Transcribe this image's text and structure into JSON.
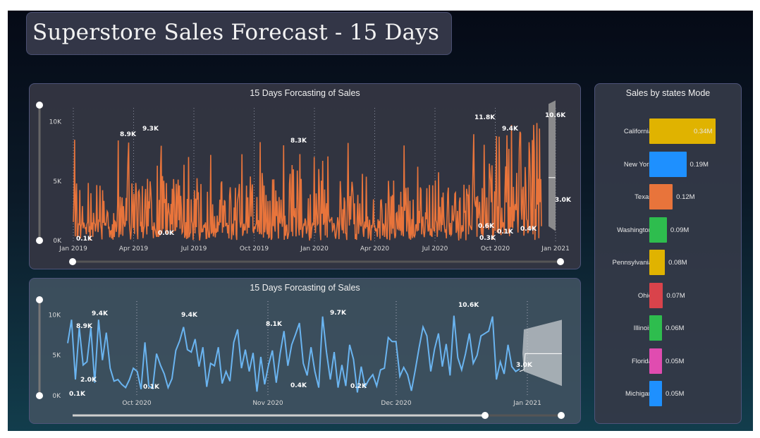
{
  "page": {
    "title": "Superstore Sales Forecast - 15 Days"
  },
  "chart_data": [
    {
      "type": "line",
      "title": "15 Days Forcasting of Sales",
      "color": "#e8743b",
      "yticks": [
        "0K",
        "5K",
        "10K"
      ],
      "ylim": [
        0,
        12000
      ],
      "xticks": [
        "Jan 2019",
        "Apr 2019",
        "Jul 2019",
        "Oct 2019",
        "Jan 2020",
        "Apr 2020",
        "Jul 2020",
        "Oct 2020",
        "Jan 2021"
      ],
      "annotations": [
        {
          "label": "0.1K",
          "value": 100
        },
        {
          "label": "8.9K",
          "value": 8900
        },
        {
          "label": "9.3K",
          "value": 9300
        },
        {
          "label": "0.0K",
          "value": 0
        },
        {
          "label": "8.3K",
          "value": 8300
        },
        {
          "label": "11.8K",
          "value": 11800
        },
        {
          "label": "0.6K",
          "value": 600
        },
        {
          "label": "0.3K",
          "value": 300
        },
        {
          "label": "9.4K",
          "value": 9400
        },
        {
          "label": "0.1K",
          "value": 100
        },
        {
          "label": "0.4K",
          "value": 400
        },
        {
          "label": "10.6K",
          "value": 10600
        },
        {
          "label": "3.0K",
          "value": 3000
        }
      ],
      "forecast_days": 15
    },
    {
      "type": "line",
      "title": "15 Days Forcasting of Sales",
      "color": "#6ab4f0",
      "yticks": [
        "0K",
        "5K",
        "10K"
      ],
      "ylim": [
        0,
        11000
      ],
      "xticks": [
        "Oct 2020",
        "Nov 2020",
        "Dec 2020",
        "Jan 2021"
      ],
      "values": [
        6500,
        9400,
        2000,
        8400,
        3800,
        4200,
        8400,
        1600,
        9400,
        4400,
        7800,
        3400,
        1800,
        2000,
        1400,
        1000,
        2000,
        3400,
        3000,
        800,
        6600,
        1200,
        900,
        5200,
        3800,
        2700,
        1000,
        2100,
        5600,
        6800,
        8500,
        5700,
        5400,
        7000,
        3600,
        6000,
        1100,
        4000,
        3700,
        6000,
        1500,
        3000,
        1800,
        6600,
        8200,
        3400,
        5700,
        3000,
        5300,
        500,
        4800,
        1400,
        3800,
        5600,
        1600,
        5200,
        8000,
        3700,
        6300,
        7600,
        9000,
        4000,
        2500,
        6000,
        3000,
        1000,
        9800,
        5400,
        2000,
        5400,
        1000,
        3800,
        1200,
        6300,
        4500,
        400,
        3600,
        1100,
        2000,
        2600,
        1200,
        3200,
        3400,
        7200,
        6700,
        6700,
        2400,
        3500,
        2600,
        600,
        3200,
        6000,
        8500,
        7400,
        3000,
        5800,
        7700,
        3600,
        6400,
        2500,
        9900,
        4700,
        3200,
        5200,
        7700,
        4000,
        5000,
        7400,
        7700,
        8000,
        9800,
        2000,
        4200,
        2700,
        6300,
        3600,
        3000,
        3300
      ],
      "annotations": [
        {
          "label": "9.4K",
          "value": 9400
        },
        {
          "label": "8.9K",
          "value": 8900
        },
        {
          "label": "2.0K",
          "value": 2000
        },
        {
          "label": "0.1K",
          "value": 100
        },
        {
          "label": "0.1K",
          "value": 100
        },
        {
          "label": "9.4K",
          "value": 9400
        },
        {
          "label": "8.1K",
          "value": 8100
        },
        {
          "label": "0.4K",
          "value": 400
        },
        {
          "label": "9.7K",
          "value": 9700
        },
        {
          "label": "0.2K",
          "value": 200
        },
        {
          "label": "10.6K",
          "value": 10600
        },
        {
          "label": "3.0K",
          "value": 3000
        }
      ],
      "forecast": {
        "center": 5200,
        "upper": 9400,
        "lower": 1200
      }
    },
    {
      "type": "bar",
      "title": "Sales by states Mode",
      "categories": [
        "California",
        "New York",
        "Texas",
        "Washington",
        "Pennsylvania",
        "Ohio",
        "Illinois",
        "Florida",
        "Michigan"
      ],
      "values": [
        0.34,
        0.19,
        0.12,
        0.09,
        0.08,
        0.07,
        0.06,
        0.05,
        0.05
      ],
      "labels": [
        "0.34M",
        "0.19M",
        "0.12M",
        "0.09M",
        "0.08M",
        "0.07M",
        "0.06M",
        "0.05M",
        "0.05M"
      ],
      "colors": [
        "#e0b300",
        "#1e90ff",
        "#e8743b",
        "#2ebd4e",
        "#e0b300",
        "#d9434b",
        "#2ebd4e",
        "#e04cb0",
        "#1e90ff"
      ]
    }
  ]
}
